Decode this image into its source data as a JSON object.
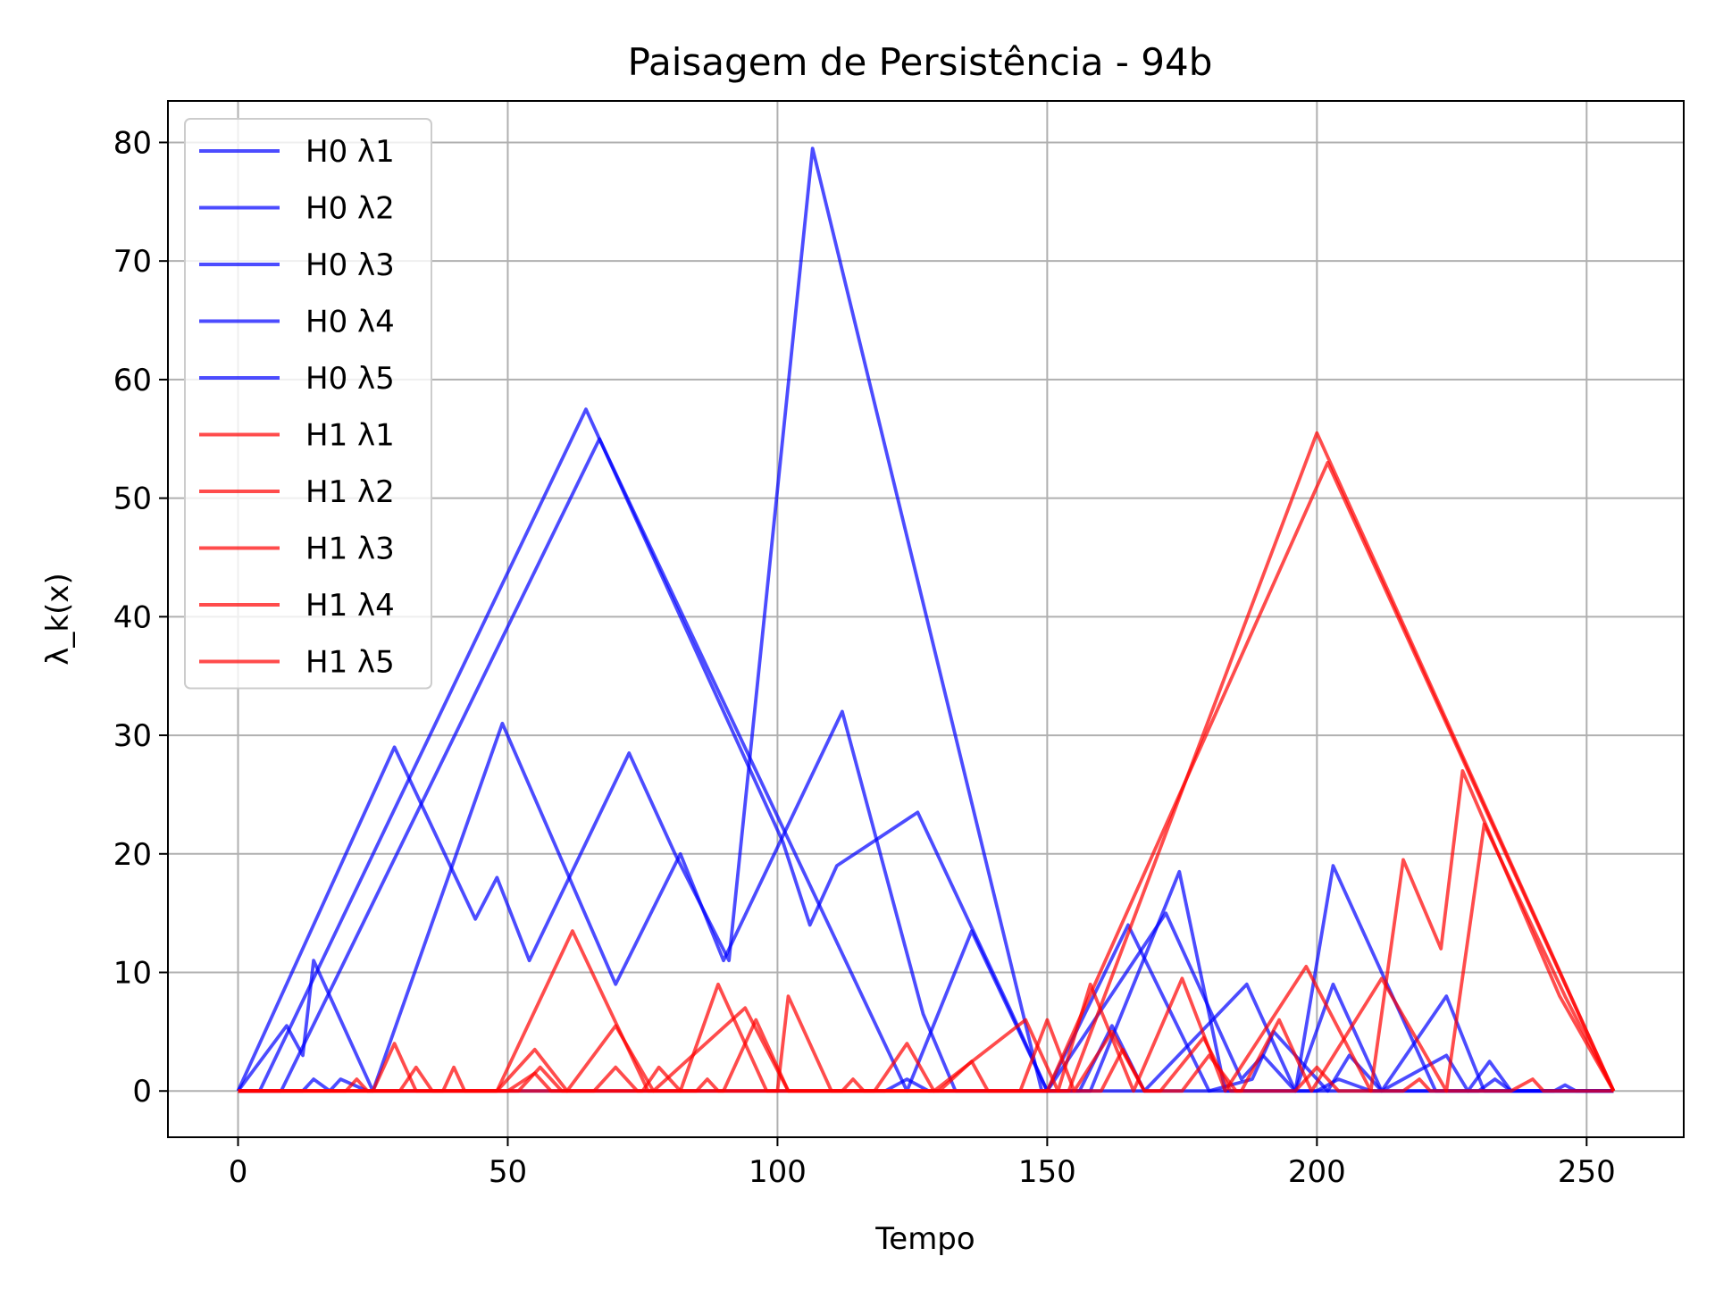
{
  "chart_data": {
    "type": "line",
    "title": "Paisagem de Persistência - 94b",
    "xlabel": "Tempo",
    "ylabel": "λ_k(x)",
    "xlim": [
      -13,
      268
    ],
    "ylim": [
      -3.9,
      83.5
    ],
    "xticks": [
      0,
      50,
      100,
      150,
      200,
      250
    ],
    "yticks": [
      0,
      10,
      20,
      30,
      40,
      50,
      60,
      70,
      80
    ],
    "grid": true,
    "legend_position": "top-left",
    "colors": {
      "H0": "#0000ff",
      "H1": "#ff0000"
    },
    "series": [
      {
        "name": "H0 λ1",
        "color": "#0000ff",
        "points": [
          [
            0,
            0
          ],
          [
            29,
            29
          ],
          [
            44,
            14.5
          ],
          [
            48,
            18
          ],
          [
            54,
            11
          ],
          [
            72.5,
            28.5
          ],
          [
            81,
            20
          ],
          [
            91,
            11
          ],
          [
            106.5,
            79.5
          ],
          [
            149,
            0
          ],
          [
            158,
            0
          ],
          [
            174.5,
            18.5
          ],
          [
            183,
            0
          ],
          [
            204,
            0
          ],
          [
            224,
            0
          ],
          [
            255,
            0
          ]
        ]
      },
      {
        "name": "H0 λ2",
        "color": "#0000ff",
        "points": [
          [
            0,
            0
          ],
          [
            9,
            5.5
          ],
          [
            12,
            3
          ],
          [
            14,
            11
          ],
          [
            25,
            0
          ],
          [
            49,
            31
          ],
          [
            70,
            9
          ],
          [
            82,
            20
          ],
          [
            90,
            11
          ],
          [
            112,
            32
          ],
          [
            127,
            6.5
          ],
          [
            133,
            0
          ],
          [
            156,
            0
          ],
          [
            162,
            5.5
          ],
          [
            168,
            0
          ],
          [
            187,
            9
          ],
          [
            196,
            0
          ],
          [
            203,
            19
          ],
          [
            222,
            0
          ],
          [
            255,
            0
          ]
        ]
      },
      {
        "name": "H0 λ3",
        "color": "#0000ff",
        "points": [
          [
            0,
            0
          ],
          [
            4,
            0
          ],
          [
            64.5,
            57.5
          ],
          [
            101,
            21
          ],
          [
            106,
            14
          ],
          [
            111,
            19
          ],
          [
            126,
            23.5
          ],
          [
            143,
            7
          ],
          [
            146,
            4
          ],
          [
            150,
            0
          ],
          [
            172,
            15
          ],
          [
            186,
            1
          ],
          [
            190,
            3
          ],
          [
            196,
            0
          ],
          [
            203,
            9
          ],
          [
            212,
            0
          ],
          [
            224,
            8
          ],
          [
            231,
            0
          ],
          [
            255,
            0
          ]
        ]
      },
      {
        "name": "H0 λ4",
        "color": "#0000ff",
        "points": [
          [
            0,
            0
          ],
          [
            8,
            0
          ],
          [
            67,
            55
          ],
          [
            124,
            0
          ],
          [
            136,
            13.5
          ],
          [
            150,
            0
          ],
          [
            165,
            14
          ],
          [
            180,
            0
          ],
          [
            188,
            1
          ],
          [
            192,
            5
          ],
          [
            202,
            0
          ],
          [
            206,
            3
          ],
          [
            212,
            0
          ],
          [
            224,
            3
          ],
          [
            228,
            0
          ],
          [
            232,
            2.5
          ],
          [
            236,
            0
          ],
          [
            255,
            0
          ]
        ]
      },
      {
        "name": "H0 λ5",
        "color": "#0000ff",
        "points": [
          [
            0,
            0
          ],
          [
            12,
            0
          ],
          [
            14,
            1
          ],
          [
            17,
            0
          ],
          [
            19,
            1
          ],
          [
            24,
            0
          ],
          [
            28,
            0
          ],
          [
            120,
            0
          ],
          [
            124,
            1
          ],
          [
            128,
            0
          ],
          [
            200,
            0
          ],
          [
            204,
            1
          ],
          [
            210,
            0
          ],
          [
            230,
            0
          ],
          [
            233,
            1
          ],
          [
            236,
            0
          ],
          [
            244,
            0
          ],
          [
            246,
            0.5
          ],
          [
            248,
            0
          ],
          [
            255,
            0
          ]
        ]
      },
      {
        "name": "H1 λ1",
        "color": "#ff0000",
        "points": [
          [
            0,
            0
          ],
          [
            25,
            0
          ],
          [
            27,
            2
          ],
          [
            29,
            4
          ],
          [
            33,
            0
          ],
          [
            48,
            0
          ],
          [
            62,
            13.5
          ],
          [
            76,
            0
          ],
          [
            82,
            0
          ],
          [
            89,
            9
          ],
          [
            98,
            0
          ],
          [
            120,
            0
          ],
          [
            148,
            0
          ],
          [
            154,
            0
          ],
          [
            200,
            55.5
          ],
          [
            255,
            0
          ]
        ]
      },
      {
        "name": "H1 λ2",
        "color": "#ff0000",
        "points": [
          [
            0,
            0
          ],
          [
            30,
            0
          ],
          [
            33,
            2
          ],
          [
            36,
            0
          ],
          [
            48,
            0
          ],
          [
            55,
            3.5
          ],
          [
            61,
            0
          ],
          [
            70,
            5.5
          ],
          [
            77,
            0
          ],
          [
            94,
            7
          ],
          [
            102,
            0
          ],
          [
            110,
            0
          ],
          [
            141,
            0
          ],
          [
            150,
            0
          ],
          [
            202,
            53
          ],
          [
            255,
            0
          ]
        ]
      },
      {
        "name": "H1 λ3",
        "color": "#ff0000",
        "points": [
          [
            0,
            0
          ],
          [
            38,
            0
          ],
          [
            40,
            2
          ],
          [
            42,
            0
          ],
          [
            52,
            0
          ],
          [
            56,
            2
          ],
          [
            60,
            0
          ],
          [
            66,
            0
          ],
          [
            70,
            2
          ],
          [
            74,
            0
          ],
          [
            90,
            0
          ],
          [
            96,
            6
          ],
          [
            102,
            0
          ],
          [
            118,
            0
          ],
          [
            124,
            4
          ],
          [
            129,
            0
          ],
          [
            146,
            6
          ],
          [
            152,
            0
          ],
          [
            158,
            9
          ],
          [
            166,
            0
          ],
          [
            175,
            9.5
          ],
          [
            183,
            0
          ],
          [
            198,
            10.5
          ],
          [
            210,
            0
          ],
          [
            216,
            19.5
          ],
          [
            223,
            12
          ],
          [
            227,
            27
          ],
          [
            245,
            8
          ],
          [
            255,
            0
          ]
        ]
      },
      {
        "name": "H1 λ4",
        "color": "#ff0000",
        "points": [
          [
            0,
            0
          ],
          [
            50,
            0
          ],
          [
            55,
            1.5
          ],
          [
            58,
            0
          ],
          [
            75,
            0
          ],
          [
            78,
            2
          ],
          [
            82,
            0
          ],
          [
            100,
            0
          ],
          [
            102,
            8
          ],
          [
            110,
            0
          ],
          [
            130,
            0
          ],
          [
            136,
            2.5
          ],
          [
            139,
            0
          ],
          [
            145,
            0
          ],
          [
            150,
            6
          ],
          [
            155,
            0
          ],
          [
            162,
            5
          ],
          [
            168,
            0
          ],
          [
            171,
            0
          ],
          [
            179,
            4.5
          ],
          [
            184,
            0
          ],
          [
            186,
            0
          ],
          [
            193,
            6
          ],
          [
            199,
            0
          ],
          [
            212,
            9.5
          ],
          [
            224,
            0
          ],
          [
            231,
            22.5
          ],
          [
            246,
            8
          ],
          [
            255,
            0
          ]
        ]
      },
      {
        "name": "H1 λ5",
        "color": "#ff0000",
        "points": [
          [
            0,
            0
          ],
          [
            20,
            0
          ],
          [
            22,
            1
          ],
          [
            24,
            0
          ],
          [
            85,
            0
          ],
          [
            87,
            1
          ],
          [
            89,
            0
          ],
          [
            112,
            0
          ],
          [
            114,
            1
          ],
          [
            116,
            0
          ],
          [
            160,
            0
          ],
          [
            164,
            3.5
          ],
          [
            168,
            0
          ],
          [
            175,
            0
          ],
          [
            180,
            3
          ],
          [
            185,
            0
          ],
          [
            196,
            0
          ],
          [
            200,
            2
          ],
          [
            204,
            0
          ],
          [
            216,
            0
          ],
          [
            219,
            1
          ],
          [
            221,
            0
          ],
          [
            236,
            0
          ],
          [
            240,
            1
          ],
          [
            242,
            0
          ],
          [
            255,
            0
          ]
        ]
      }
    ]
  }
}
